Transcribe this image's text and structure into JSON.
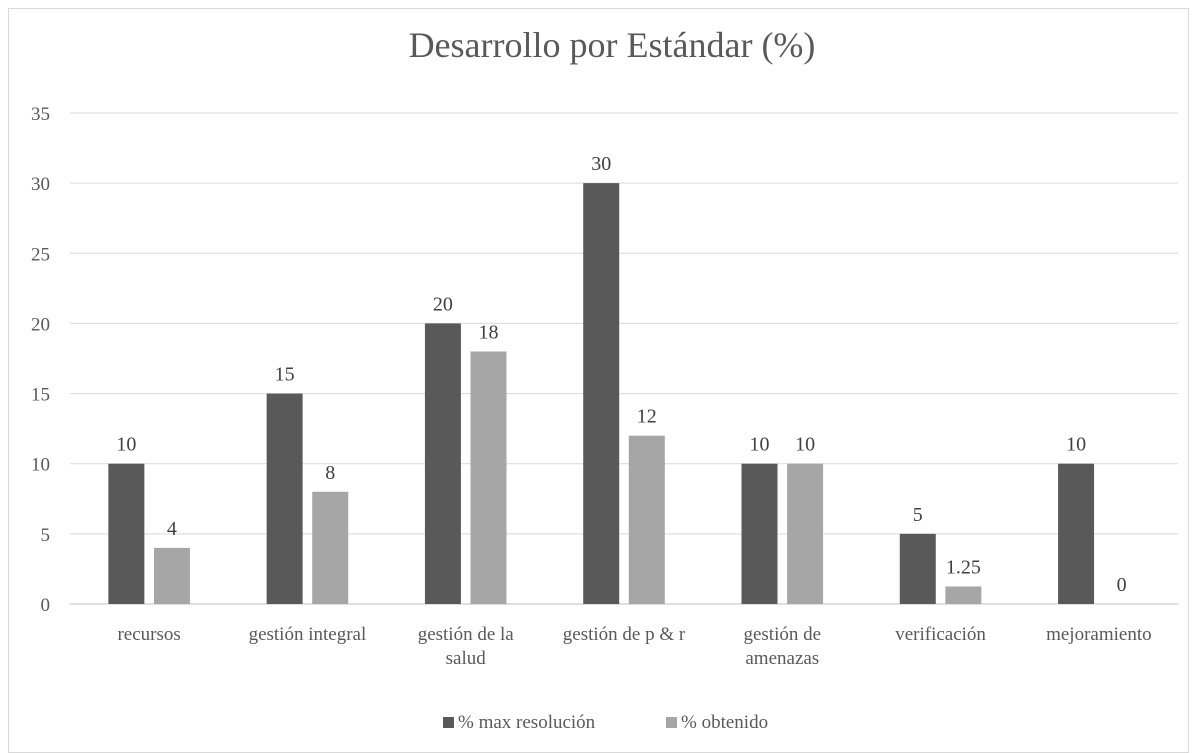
{
  "chart_data": {
    "type": "bar",
    "title": "Desarrollo por Estándar  (%)",
    "xlabel": "",
    "ylabel": "",
    "ylim": [
      0,
      35
    ],
    "yticks": [
      0,
      5,
      10,
      15,
      20,
      25,
      30,
      35
    ],
    "grid": true,
    "legend_position": "bottom",
    "categories": [
      [
        "recursos"
      ],
      [
        "gestión integral"
      ],
      [
        "gestión de la",
        "salud"
      ],
      [
        "gestión de p & r"
      ],
      [
        "gestión de",
        "amenazas"
      ],
      [
        "verificación"
      ],
      [
        "mejoramiento"
      ]
    ],
    "series": [
      {
        "name": "% max resolución",
        "color": "#595959",
        "values": [
          10,
          15,
          20,
          30,
          10,
          5,
          10
        ],
        "labels": [
          "10",
          "15",
          "20",
          "30",
          "10",
          "5",
          "10"
        ]
      },
      {
        "name": "% obtenido",
        "color": "#a6a6a6",
        "values": [
          4,
          8,
          18,
          12,
          10,
          1.25,
          0
        ],
        "labels": [
          "4",
          "8",
          "18",
          "12",
          "10",
          "1.25",
          "0"
        ]
      }
    ]
  }
}
